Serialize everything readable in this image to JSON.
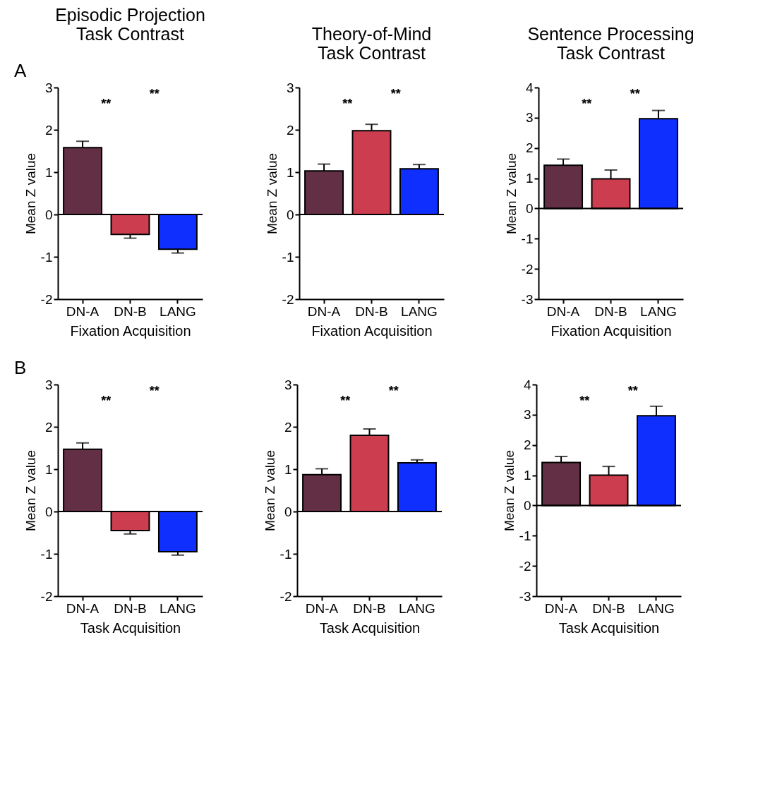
{
  "chart_data": [
    {
      "type": "bar",
      "title": "Episodic Projection Task Contrast",
      "xlabel": "Fixation Acquisition",
      "ylabel": "Mean Z value",
      "categories": [
        "DN-A",
        "DN-B",
        "LANG"
      ],
      "values": [
        1.58,
        -0.47,
        -0.82
      ],
      "colors": [
        "#632f45",
        "#cc3e4f",
        "#0f2fff"
      ],
      "errors": [
        [
          1.58,
          1.73
        ],
        [
          -0.56,
          -0.47
        ],
        [
          -0.91,
          -0.82
        ]
      ],
      "ylim": [
        -2,
        3
      ],
      "yticks": [
        -2,
        -1,
        0,
        1,
        2,
        3
      ],
      "ref_lines": [
        {
          "axis": "y",
          "value": 0
        }
      ],
      "grid": false,
      "annotations": [
        "A",
        "**",
        "**"
      ]
    },
    {
      "type": "bar",
      "title": "Theory-of-Mind Task Contrast",
      "xlabel": "Fixation Acquisition",
      "ylabel": "Mean Z value",
      "categories": [
        "DN-A",
        "DN-B",
        "LANG"
      ],
      "values": [
        1.03,
        1.98,
        1.08
      ],
      "colors": [
        "#632f45",
        "#cc3e4f",
        "#0f2fff"
      ],
      "errors": [
        [
          1.03,
          1.19
        ],
        [
          1.98,
          2.13
        ],
        [
          1.08,
          1.18
        ]
      ],
      "ylim": [
        -2,
        3
      ],
      "yticks": [
        -2,
        -1,
        0,
        1,
        2,
        3
      ],
      "ref_lines": [
        {
          "axis": "y",
          "value": 0
        }
      ],
      "grid": false,
      "annotations": [
        "**",
        "**"
      ]
    },
    {
      "type": "bar",
      "title": "Sentence Processing Task Contrast",
      "xlabel": "Fixation Acquisition",
      "ylabel": "Mean Z value",
      "categories": [
        "DN-A",
        "DN-B",
        "LANG"
      ],
      "values": [
        1.43,
        0.98,
        2.97
      ],
      "colors": [
        "#632f45",
        "#cc3e4f",
        "#0f2fff"
      ],
      "errors": [
        [
          1.43,
          1.63
        ],
        [
          0.98,
          1.27
        ],
        [
          2.97,
          3.24
        ]
      ],
      "ylim": [
        -3,
        4
      ],
      "yticks": [
        -3,
        -2,
        -1,
        0,
        1,
        2,
        3,
        4
      ],
      "ref_lines": [
        {
          "axis": "y",
          "value": 0
        }
      ],
      "grid": false,
      "annotations": [
        "**",
        "**"
      ]
    },
    {
      "type": "bar",
      "xlabel": "Task Acquisition",
      "ylabel": "Mean Z value",
      "categories": [
        "DN-A",
        "DN-B",
        "LANG"
      ],
      "values": [
        1.47,
        -0.45,
        -0.95
      ],
      "colors": [
        "#632f45",
        "#cc3e4f",
        "#0f2fff"
      ],
      "errors": [
        [
          1.47,
          1.62
        ],
        [
          -0.53,
          -0.45
        ],
        [
          -1.03,
          -0.95
        ]
      ],
      "ylim": [
        -2,
        3
      ],
      "yticks": [
        -2,
        -1,
        0,
        1,
        2,
        3
      ],
      "ref_lines": [
        {
          "axis": "y",
          "value": 0
        }
      ],
      "grid": false,
      "annotations": [
        "B",
        "**",
        "**"
      ]
    },
    {
      "type": "bar",
      "xlabel": "Task Acquisition",
      "ylabel": "Mean Z value",
      "categories": [
        "DN-A",
        "DN-B",
        "LANG"
      ],
      "values": [
        0.87,
        1.8,
        1.15
      ],
      "colors": [
        "#632f45",
        "#cc3e4f",
        "#0f2fff"
      ],
      "errors": [
        [
          0.87,
          1.01
        ],
        [
          1.8,
          1.95
        ],
        [
          1.15,
          1.22
        ]
      ],
      "ylim": [
        -2,
        3
      ],
      "yticks": [
        -2,
        -1,
        0,
        1,
        2,
        3
      ],
      "ref_lines": [
        {
          "axis": "y",
          "value": 0
        }
      ],
      "grid": false,
      "annotations": [
        "**",
        "**"
      ]
    },
    {
      "type": "bar",
      "xlabel": "Task Acquisition",
      "ylabel": "Mean Z value",
      "categories": [
        "DN-A",
        "DN-B",
        "LANG"
      ],
      "values": [
        1.42,
        1.0,
        2.97
      ],
      "colors": [
        "#632f45",
        "#cc3e4f",
        "#0f2fff"
      ],
      "errors": [
        [
          1.42,
          1.62
        ],
        [
          1.0,
          1.29
        ],
        [
          2.97,
          3.28
        ]
      ],
      "ylim": [
        -3,
        4
      ],
      "yticks": [
        -3,
        -2,
        -1,
        0,
        1,
        2,
        3,
        4
      ],
      "ref_lines": [
        {
          "axis": "y",
          "value": 0
        }
      ],
      "grid": false,
      "annotations": [
        "**",
        "**"
      ]
    }
  ]
}
